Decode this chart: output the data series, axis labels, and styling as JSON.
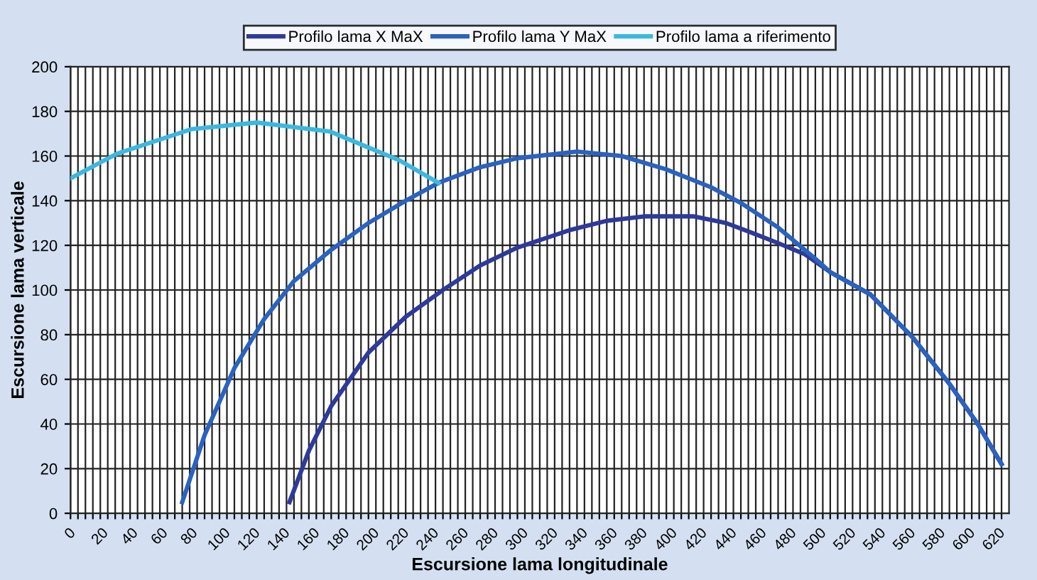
{
  "chart_data": {
    "type": "line",
    "xlabel": "Escursione lama longitudinale",
    "ylabel": "Escursione lama verticale",
    "xlim": [
      0,
      630
    ],
    "ylim": [
      0,
      200
    ],
    "yticks": [
      0,
      20,
      40,
      60,
      80,
      100,
      120,
      140,
      160,
      180,
      200
    ],
    "xticks": [
      0,
      {
        "value": 5,
        "label": null
      },
      {
        "value": 10,
        "label": null
      },
      {
        "value": 15,
        "label": null
      },
      20,
      {
        "value": 25,
        "label": null
      },
      {
        "value": 30,
        "label": null
      },
      {
        "value": 35,
        "label": null
      },
      40,
      {
        "value": 45,
        "label": null
      },
      {
        "value": 50,
        "label": null
      },
      {
        "value": 55,
        "label": null
      },
      60,
      {
        "value": 65,
        "label": null
      },
      {
        "value": 70,
        "label": null
      },
      {
        "value": 75,
        "label": null
      },
      80,
      {
        "value": 85,
        "label": null
      },
      {
        "value": 90,
        "label": null
      },
      {
        "value": 95,
        "label": null
      },
      100,
      {
        "value": 105,
        "label": null
      },
      {
        "value": 110,
        "label": null
      },
      {
        "value": 115,
        "label": null
      },
      120,
      {
        "value": 125,
        "label": null
      },
      {
        "value": 130,
        "label": null
      },
      {
        "value": 135,
        "label": null
      },
      140,
      {
        "value": 145,
        "label": null
      },
      {
        "value": 150,
        "label": null
      },
      {
        "value": 155,
        "label": null
      },
      160,
      {
        "value": 165,
        "label": null
      },
      {
        "value": 170,
        "label": null
      },
      {
        "value": 175,
        "label": null
      },
      180,
      {
        "value": 185,
        "label": null
      },
      {
        "value": 190,
        "label": null
      },
      {
        "value": 195,
        "label": null
      },
      200,
      {
        "value": 205,
        "label": null
      },
      {
        "value": 210,
        "label": null
      },
      {
        "value": 215,
        "label": null
      },
      220,
      {
        "value": 225,
        "label": null
      },
      {
        "value": 230,
        "label": null
      },
      {
        "value": 235,
        "label": null
      },
      240,
      {
        "value": 245,
        "label": null
      },
      {
        "value": 250,
        "label": null
      },
      {
        "value": 255,
        "label": null
      },
      260,
      {
        "value": 265,
        "label": null
      },
      {
        "value": 270,
        "label": null
      },
      {
        "value": 275,
        "label": null
      },
      280,
      {
        "value": 285,
        "label": null
      },
      {
        "value": 290,
        "label": null
      },
      {
        "value": 295,
        "label": null
      },
      300,
      {
        "value": 305,
        "label": null
      },
      {
        "value": 310,
        "label": null
      },
      {
        "value": 315,
        "label": null
      },
      320,
      {
        "value": 325,
        "label": null
      },
      {
        "value": 330,
        "label": null
      },
      {
        "value": 335,
        "label": null
      },
      340,
      {
        "value": 345,
        "label": null
      },
      {
        "value": 350,
        "label": null
      },
      {
        "value": 355,
        "label": null
      },
      360,
      {
        "value": 365,
        "label": null
      },
      {
        "value": 370,
        "label": null
      },
      {
        "value": 375,
        "label": null
      },
      380,
      {
        "value": 385,
        "label": null
      },
      {
        "value": 390,
        "label": null
      },
      {
        "value": 395,
        "label": null
      },
      400,
      {
        "value": 405,
        "label": null
      },
      {
        "value": 410,
        "label": null
      },
      {
        "value": 415,
        "label": null
      },
      420,
      {
        "value": 425,
        "label": null
      },
      {
        "value": 430,
        "label": null
      },
      {
        "value": 435,
        "label": null
      },
      440,
      {
        "value": 445,
        "label": null
      },
      {
        "value": 450,
        "label": null
      },
      {
        "value": 455,
        "label": null
      },
      460,
      {
        "value": 465,
        "label": null
      },
      {
        "value": 470,
        "label": null
      },
      {
        "value": 475,
        "label": null
      },
      480,
      {
        "value": 485,
        "label": null
      },
      {
        "value": 490,
        "label": null
      },
      {
        "value": 495,
        "label": null
      },
      500,
      {
        "value": 505,
        "label": null
      },
      {
        "value": 510,
        "label": null
      },
      {
        "value": 515,
        "label": null
      },
      520,
      {
        "value": 525,
        "label": null
      },
      {
        "value": 530,
        "label": null
      },
      {
        "value": 535,
        "label": null
      },
      540,
      {
        "value": 545,
        "label": null
      },
      {
        "value": 550,
        "label": null
      },
      {
        "value": 555,
        "label": null
      },
      560,
      {
        "value": 565,
        "label": null
      },
      {
        "value": 570,
        "label": null
      },
      {
        "value": 575,
        "label": null
      },
      580,
      {
        "value": 585,
        "label": null
      },
      {
        "value": 590,
        "label": null
      },
      {
        "value": 595,
        "label": null
      },
      600,
      {
        "value": 605,
        "label": null
      },
      {
        "value": 610,
        "label": null
      },
      {
        "value": 615,
        "label": null
      },
      620,
      {
        "value": 625,
        "label": null
      }
    ],
    "grid": true,
    "legend": "top",
    "marker": "none",
    "line_style": "solid",
    "series": [
      {
        "name": "Profilo lama X MaX",
        "color": "#2e3a9a",
        "x": [
          147,
          160,
          175,
          200,
          225,
          250,
          275,
          300,
          336,
          360,
          386,
          418,
          440,
          456,
          475,
          493,
          510,
          537,
          565,
          590,
          609,
          625
        ],
        "values": [
          5,
          28,
          48,
          72,
          88,
          100,
          111,
          119,
          127,
          131,
          133,
          133,
          130,
          126,
          121,
          116,
          108,
          98,
          79,
          58,
          40,
          22
        ]
      },
      {
        "name": "Profilo lama Y MaX",
        "color": "#2a62c0",
        "x": [
          75,
          90,
          110,
          130,
          150,
          175,
          200,
          225,
          247,
          275,
          300,
          340,
          370,
          400,
          430,
          450,
          475,
          500,
          510,
          537,
          565,
          590,
          609,
          625
        ],
        "values": [
          5,
          35,
          65,
          87,
          104,
          118,
          130,
          140,
          148,
          155,
          159,
          162,
          160,
          154,
          146,
          139,
          128,
          114,
          108,
          98,
          79,
          58,
          40,
          22
        ]
      },
      {
        "name": "Profilo lama a riferimento",
        "color": "#3cb8e0",
        "x": [
          0,
          31,
          81,
          125,
          174,
          221,
          247
        ],
        "values": [
          150,
          161,
          172,
          175,
          171,
          158,
          148
        ]
      }
    ]
  }
}
